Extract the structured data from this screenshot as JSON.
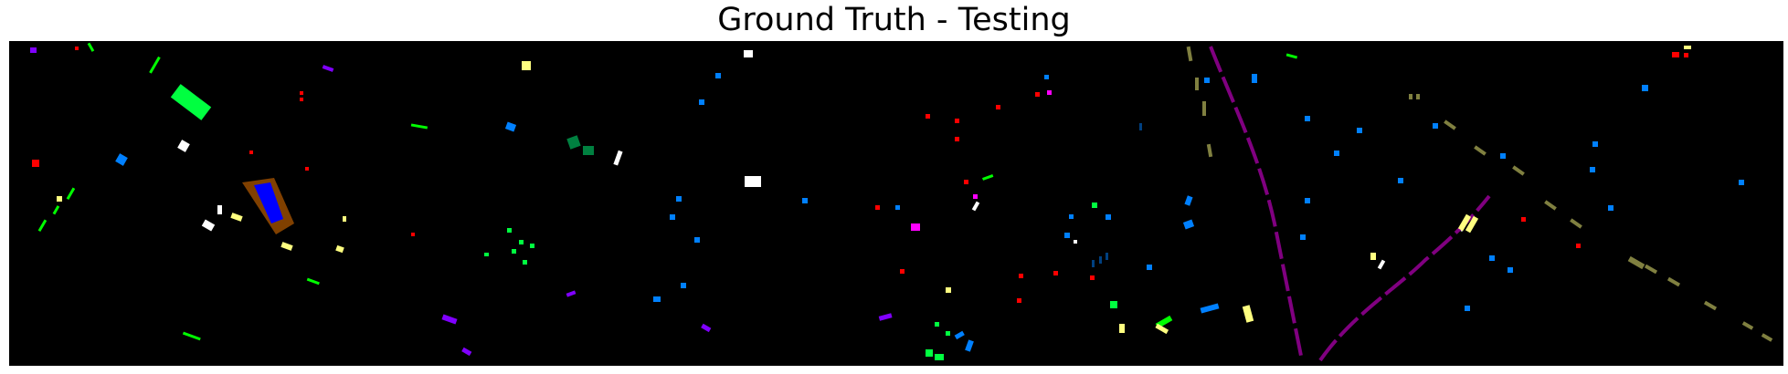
{
  "figure": {
    "title": "Ground Truth - Testing",
    "background_color": "#000000"
  },
  "chart_data": {
    "type": "heatmap",
    "title": "Ground Truth - Testing",
    "description_kind": "classification ground-truth map, no axes, no legend, no colorbar",
    "grid": false,
    "legend": "none",
    "class_colors": [
      "#ff0000",
      "#00ff40",
      "#0080ff",
      "#8000ff",
      "#ff00ff",
      "#808040",
      "#800080",
      "#ffff80",
      "#ffffff",
      "#00ff00",
      "#008040",
      "#0000ff",
      "#804000",
      "#004080"
    ]
  }
}
